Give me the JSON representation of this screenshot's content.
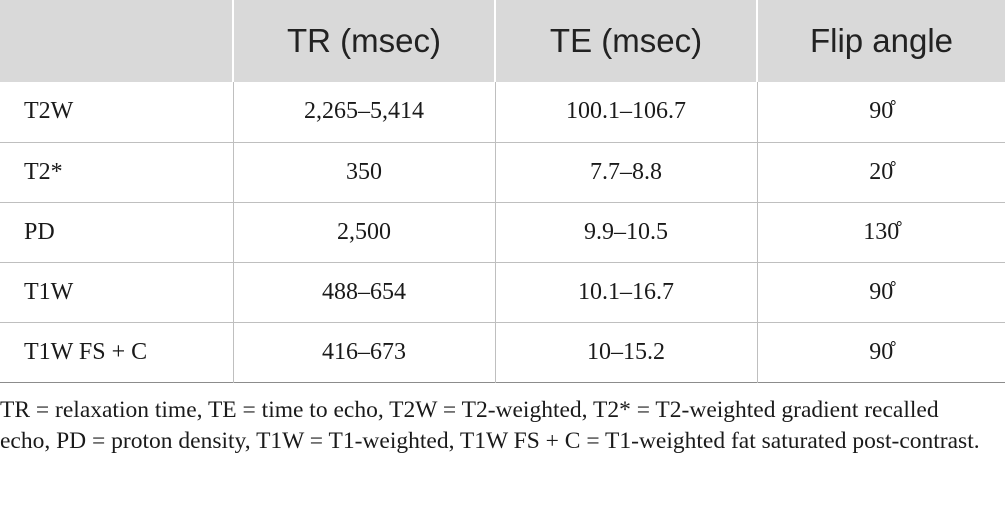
{
  "table": {
    "headers": [
      "",
      "TR (msec)",
      "TE (msec)",
      "Flip angle"
    ],
    "rows": [
      {
        "label": "T2W",
        "tr": "2,265–5,414",
        "te": "100.1–106.7",
        "flip": "90̊"
      },
      {
        "label": "T2*",
        "tr": "350",
        "te": "7.7–8.8",
        "flip": "20̊"
      },
      {
        "label": "PD",
        "tr": "2,500",
        "te": "9.9–10.5",
        "flip": "130̊"
      },
      {
        "label": "T1W",
        "tr": "488–654",
        "te": "10.1–16.7",
        "flip": "90̊"
      },
      {
        "label": "T1W FS + C",
        "tr": "416–673",
        "te": "10–15.2",
        "flip": "90̊"
      }
    ]
  },
  "footnote": "TR = relaxation time, TE = time to echo, T2W = T2-weighted, T2* = T2-weighted gradient recalled echo, PD = proton density, T1W = T1-weighted, T1W FS + C = T1-weighted fat saturated post-contrast."
}
